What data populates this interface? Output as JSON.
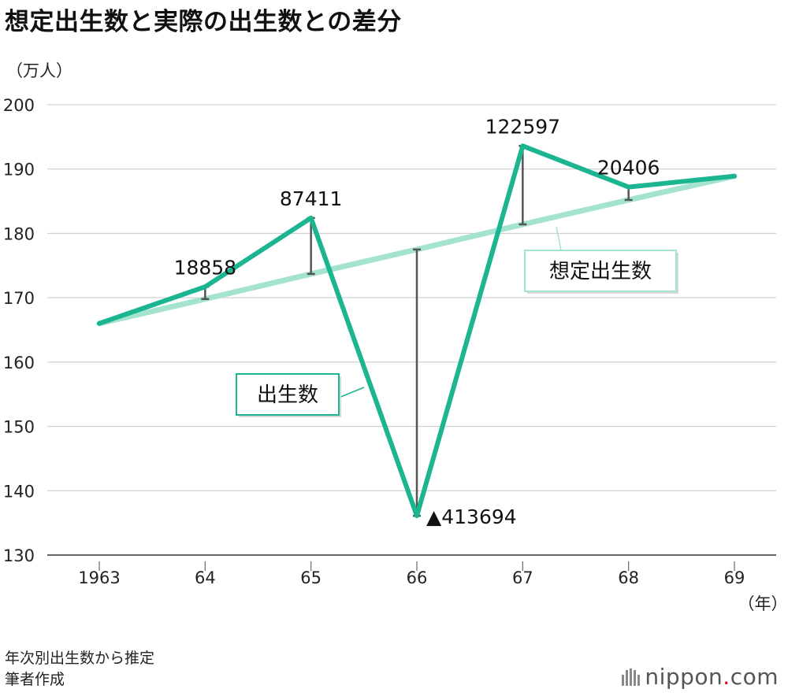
{
  "title": "想定出生数と実際の出生数との差分",
  "y_unit": "（万人）",
  "x_unit": "（年）",
  "notes": [
    "年次別出生数から推定",
    "筆者作成"
  ],
  "brand": {
    "name": "nippon",
    "dot": ".",
    "suffix": "com"
  },
  "colors": {
    "actual": "#1bb592",
    "expected": "#a3e3d0",
    "diff": "#555555",
    "grid": "#c8c8c8",
    "axis": "#333333"
  },
  "chart_data": {
    "type": "line",
    "title": "想定出生数と実際の出生数との差分",
    "ylabel": "（万人）",
    "xlabel": "（年）",
    "categories": [
      "1963",
      "64",
      "65",
      "66",
      "67",
      "68",
      "69"
    ],
    "ylim": [
      130,
      200
    ],
    "yticks": [
      130,
      140,
      150,
      160,
      170,
      180,
      190,
      200
    ],
    "grid": true,
    "series": [
      {
        "name": "出生数",
        "values": [
          166.0,
          171.7,
          182.4,
          136.1,
          193.6,
          187.2,
          188.9
        ]
      },
      {
        "name": "想定出生数",
        "values": [
          166.0,
          169.8,
          173.7,
          177.5,
          181.4,
          185.2,
          188.9
        ]
      }
    ],
    "differences": [
      {
        "category": "64",
        "label": "18858"
      },
      {
        "category": "65",
        "label": "87411"
      },
      {
        "category": "66",
        "label": "▲413694"
      },
      {
        "category": "67",
        "label": "122597"
      },
      {
        "category": "68",
        "label": "20406"
      }
    ]
  }
}
